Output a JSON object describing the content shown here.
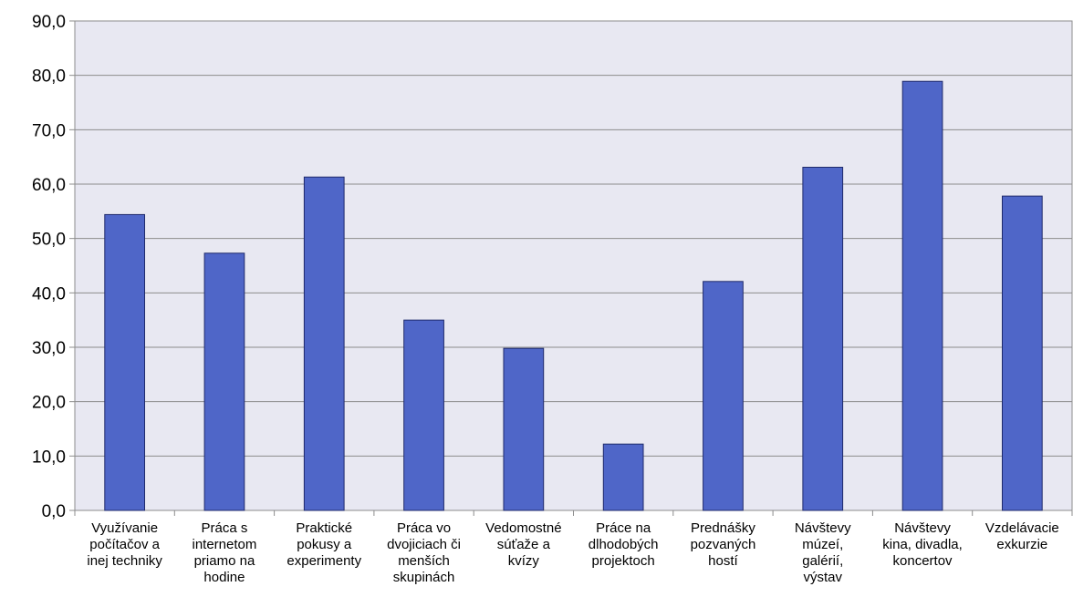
{
  "chart_data": {
    "type": "bar",
    "title": "",
    "xlabel": "",
    "ylabel": "",
    "ylim": [
      0,
      90
    ],
    "yticks": [
      "0,0",
      "10,0",
      "20,0",
      "30,0",
      "40,0",
      "50,0",
      "60,0",
      "70,0",
      "80,0",
      "90,0"
    ],
    "grid": true,
    "legend": "none",
    "categories": [
      [
        "Využívanie",
        "počítačov a",
        "inej techniky"
      ],
      [
        "Práca s",
        "internetom",
        "priamo na",
        "hodine"
      ],
      [
        "Praktické",
        "pokusy a",
        "experimenty"
      ],
      [
        "Práca vo",
        "dvojiciach či",
        "menších",
        "skupinách"
      ],
      [
        "Vedomostné",
        "súťaže a",
        "kvízy"
      ],
      [
        "Práce na",
        "dlhodobých",
        "projektoch"
      ],
      [
        "Prednášky",
        "pozvaných",
        "hostí"
      ],
      [
        "Návštevy",
        "múzeí,",
        "galérií,",
        "výstav"
      ],
      [
        "Návštevy",
        "kina, divadla,",
        "koncertov"
      ],
      [
        "Vzdelávacie",
        "exkurzie"
      ]
    ],
    "values": [
      54.4,
      47.3,
      61.3,
      35.0,
      29.8,
      12.2,
      42.1,
      63.1,
      78.9,
      57.8
    ],
    "colors": {
      "bar_fill": "#4F66C8",
      "bar_stroke": "#1F2A6B",
      "plot_bg": "#E8E8F2",
      "grid": "#8C8C8C",
      "axis": "#8C8C8C"
    }
  }
}
